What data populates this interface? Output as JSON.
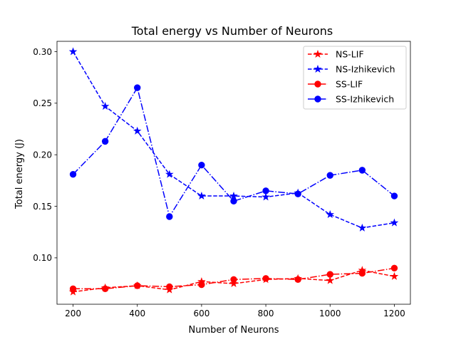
{
  "chart_data": {
    "type": "line",
    "title": "Total energy vs Number of Neurons",
    "xlabel": "Number of Neurons",
    "ylabel": "Total energy (J)",
    "xlim": [
      150,
      1250
    ],
    "ylim": [
      0.055,
      0.31
    ],
    "xticks": [
      200,
      400,
      600,
      800,
      1000,
      1200
    ],
    "yticks": [
      0.1,
      0.15,
      0.2,
      0.25,
      0.3
    ],
    "ytick_labels": [
      "0.10",
      "0.15",
      "0.20",
      "0.25",
      "0.30"
    ],
    "grid": false,
    "legend_position": "top-right",
    "x": [
      200,
      300,
      400,
      500,
      600,
      700,
      800,
      900,
      1000,
      1100,
      1200
    ],
    "series": [
      {
        "name": "NS-LIF",
        "color": "#ff0000",
        "linestyle": "dashed",
        "marker": "star",
        "values": [
          0.067,
          0.071,
          0.073,
          0.069,
          0.077,
          0.075,
          0.079,
          0.08,
          0.078,
          0.088,
          0.082
        ]
      },
      {
        "name": "NS-Izhikevich",
        "color": "#0000ff",
        "linestyle": "dashed",
        "marker": "star",
        "values": [
          0.3,
          0.247,
          0.223,
          0.181,
          0.16,
          0.16,
          0.159,
          0.163,
          0.142,
          0.129,
          0.134
        ]
      },
      {
        "name": "SS-LIF",
        "color": "#ff0000",
        "linestyle": "dashdot",
        "marker": "circle",
        "values": [
          0.07,
          0.07,
          0.073,
          0.072,
          0.074,
          0.079,
          0.08,
          0.079,
          0.084,
          0.085,
          0.09
        ]
      },
      {
        "name": "SS-Izhikevich",
        "color": "#0000ff",
        "linestyle": "dashdot",
        "marker": "circle",
        "values": [
          0.181,
          0.213,
          0.265,
          0.14,
          0.19,
          0.155,
          0.165,
          0.162,
          0.18,
          0.185,
          0.16
        ]
      }
    ]
  }
}
